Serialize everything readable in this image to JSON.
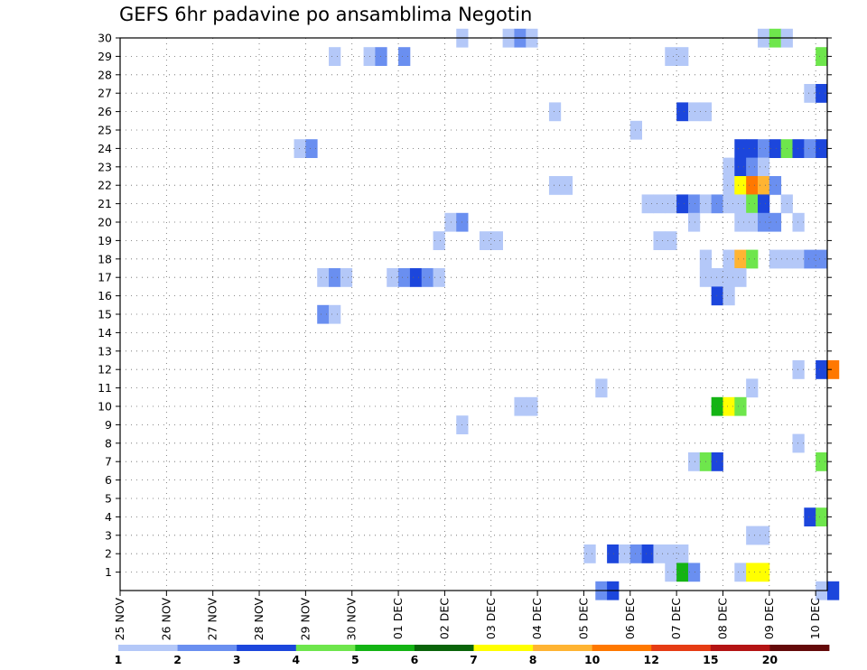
{
  "chart_data": {
    "type": "heatmap",
    "title": "GEFS 6hr padavine po ansamblima Negotin",
    "xlabel": "",
    "ylabel": "",
    "x_ticks": [
      "25 NOV",
      "26 NOV",
      "27 NOV",
      "28 NOV",
      "29 NOV",
      "30 NOV",
      "01 DEC",
      "02 DEC",
      "03 DEC",
      "04 DEC",
      "05 DEC",
      "06 DEC",
      "07 DEC",
      "08 DEC",
      "09 DEC",
      "10 DEC"
    ],
    "y_ticks": [
      "1",
      "2",
      "3",
      "4",
      "5",
      "6",
      "7",
      "8",
      "9",
      "10",
      "11",
      "12",
      "13",
      "14",
      "15",
      "16",
      "17",
      "18",
      "19",
      "20",
      "21",
      "22",
      "23",
      "24",
      "25",
      "26",
      "27",
      "28",
      "29",
      "30"
    ],
    "xlim": [
      0,
      61
    ],
    "ylim": [
      0,
      30
    ],
    "grid": true,
    "time_step_hours": 6,
    "legend": {
      "placement": "bottom",
      "labels": [
        "1",
        "2",
        "3",
        "4",
        "5",
        "6",
        "7",
        "8",
        "10",
        "12",
        "15",
        "20"
      ],
      "colors": [
        "#b4c8f8",
        "#6a8ff0",
        "#1c46dc",
        "#6ee64c",
        "#14b414",
        "#0a640a",
        "#ffff00",
        "#ffb432",
        "#ff7800",
        "#e63c14",
        "#b41414",
        "#640a0a"
      ]
    },
    "cells": [
      [
        29,
        30,
        1
      ],
      [
        33,
        30,
        1
      ],
      [
        34,
        30,
        2
      ],
      [
        35,
        30,
        1
      ],
      [
        55,
        30,
        1
      ],
      [
        56,
        30,
        4
      ],
      [
        57,
        30,
        1
      ],
      [
        18,
        29,
        1
      ],
      [
        21,
        29,
        1
      ],
      [
        22,
        29,
        2
      ],
      [
        24,
        29,
        2
      ],
      [
        47,
        29,
        1
      ],
      [
        48,
        29,
        1
      ],
      [
        60,
        29,
        4
      ],
      [
        59,
        27,
        1
      ],
      [
        60,
        27,
        3
      ],
      [
        37,
        26,
        1
      ],
      [
        48,
        26,
        3
      ],
      [
        49,
        26,
        1
      ],
      [
        50,
        26,
        1
      ],
      [
        44,
        25,
        1
      ],
      [
        15,
        24,
        1
      ],
      [
        16,
        24,
        2
      ],
      [
        53,
        24,
        3
      ],
      [
        54,
        24,
        3
      ],
      [
        55,
        24,
        2
      ],
      [
        56,
        24,
        3
      ],
      [
        57,
        24,
        4
      ],
      [
        58,
        24,
        3
      ],
      [
        59,
        24,
        2
      ],
      [
        60,
        24,
        3
      ],
      [
        52,
        23,
        1
      ],
      [
        53,
        23,
        3
      ],
      [
        54,
        23,
        2
      ],
      [
        55,
        23,
        1
      ],
      [
        37,
        22,
        1
      ],
      [
        38,
        22,
        1
      ],
      [
        52,
        22,
        1
      ],
      [
        53,
        22,
        7
      ],
      [
        54,
        22,
        9
      ],
      [
        55,
        22,
        8
      ],
      [
        56,
        22,
        2
      ],
      [
        45,
        21,
        1
      ],
      [
        46,
        21,
        1
      ],
      [
        47,
        21,
        1
      ],
      [
        48,
        21,
        3
      ],
      [
        49,
        21,
        2
      ],
      [
        50,
        21,
        1
      ],
      [
        51,
        21,
        2
      ],
      [
        52,
        21,
        1
      ],
      [
        53,
        21,
        1
      ],
      [
        54,
        21,
        4
      ],
      [
        55,
        21,
        3
      ],
      [
        57,
        21,
        1
      ],
      [
        28,
        20,
        1
      ],
      [
        29,
        20,
        2
      ],
      [
        49,
        20,
        1
      ],
      [
        53,
        20,
        1
      ],
      [
        54,
        20,
        1
      ],
      [
        55,
        20,
        2
      ],
      [
        56,
        20,
        2
      ],
      [
        58,
        20,
        1
      ],
      [
        27,
        19,
        1
      ],
      [
        31,
        19,
        1
      ],
      [
        32,
        19,
        1
      ],
      [
        46,
        19,
        1
      ],
      [
        47,
        19,
        1
      ],
      [
        50,
        18,
        1
      ],
      [
        52,
        18,
        1
      ],
      [
        53,
        18,
        8
      ],
      [
        54,
        18,
        4
      ],
      [
        56,
        18,
        1
      ],
      [
        57,
        18,
        1
      ],
      [
        58,
        18,
        1
      ],
      [
        59,
        18,
        2
      ],
      [
        60,
        18,
        2
      ],
      [
        17,
        17,
        1
      ],
      [
        18,
        17,
        2
      ],
      [
        19,
        17,
        1
      ],
      [
        23,
        17,
        1
      ],
      [
        24,
        17,
        2
      ],
      [
        25,
        17,
        3
      ],
      [
        26,
        17,
        2
      ],
      [
        27,
        17,
        1
      ],
      [
        50,
        17,
        1
      ],
      [
        51,
        17,
        1
      ],
      [
        52,
        17,
        1
      ],
      [
        53,
        17,
        1
      ],
      [
        51,
        16,
        3
      ],
      [
        52,
        16,
        1
      ],
      [
        17,
        15,
        2
      ],
      [
        18,
        15,
        1
      ],
      [
        58,
        12,
        1
      ],
      [
        60,
        12,
        3
      ],
      [
        61,
        12,
        9
      ],
      [
        41,
        11,
        1
      ],
      [
        54,
        11,
        1
      ],
      [
        34,
        10,
        1
      ],
      [
        35,
        10,
        1
      ],
      [
        51,
        10,
        5
      ],
      [
        52,
        10,
        7
      ],
      [
        53,
        10,
        4
      ],
      [
        29,
        9,
        1
      ],
      [
        58,
        8,
        1
      ],
      [
        49,
        7,
        1
      ],
      [
        50,
        7,
        4
      ],
      [
        51,
        7,
        3
      ],
      [
        60,
        7,
        4
      ],
      [
        59,
        4,
        3
      ],
      [
        60,
        4,
        4
      ],
      [
        54,
        3,
        1
      ],
      [
        55,
        3,
        1
      ],
      [
        40,
        2,
        1
      ],
      [
        42,
        2,
        3
      ],
      [
        43,
        2,
        1
      ],
      [
        44,
        2,
        2
      ],
      [
        45,
        2,
        3
      ],
      [
        46,
        2,
        1
      ],
      [
        47,
        2,
        1
      ],
      [
        48,
        2,
        1
      ],
      [
        47,
        1,
        1
      ],
      [
        48,
        1,
        5
      ],
      [
        49,
        1,
        2
      ],
      [
        53,
        1,
        1
      ],
      [
        54,
        1,
        7
      ],
      [
        55,
        1,
        7
      ],
      [
        41,
        0,
        2
      ],
      [
        42,
        0,
        3
      ],
      [
        60,
        0,
        1
      ],
      [
        61,
        0,
        3
      ]
    ]
  }
}
